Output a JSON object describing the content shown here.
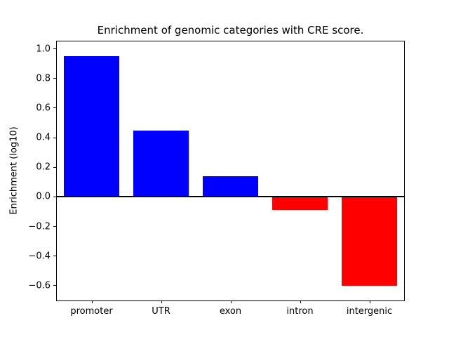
{
  "chart_data": {
    "type": "bar",
    "title": "Enrichment of genomic categories with CRE score.",
    "xlabel": "",
    "ylabel": "Enrichment (log10)",
    "categories": [
      "promoter",
      "UTR",
      "exon",
      "intron",
      "intergenic"
    ],
    "values": [
      0.95,
      0.45,
      0.14,
      -0.09,
      -0.6
    ],
    "bar_colors": [
      "#0000ff",
      "#0000ff",
      "#0000ff",
      "#ff0000",
      "#ff0000"
    ],
    "positive_color": "#0000ff",
    "negative_color": "#ff0000",
    "ylim": [
      -0.7,
      1.05
    ],
    "yticks": [
      1.0,
      0.8,
      0.6,
      0.4,
      0.2,
      0.0,
      -0.2,
      -0.4,
      -0.6
    ],
    "ytick_labels": [
      "1.0",
      "0.8",
      "0.6",
      "0.4",
      "0.2",
      "0.0",
      "−0.2",
      "−0.4",
      "−0.6"
    ],
    "grid": false,
    "zero_line": true,
    "legend": "none",
    "bar_width_fraction": 0.8
  }
}
